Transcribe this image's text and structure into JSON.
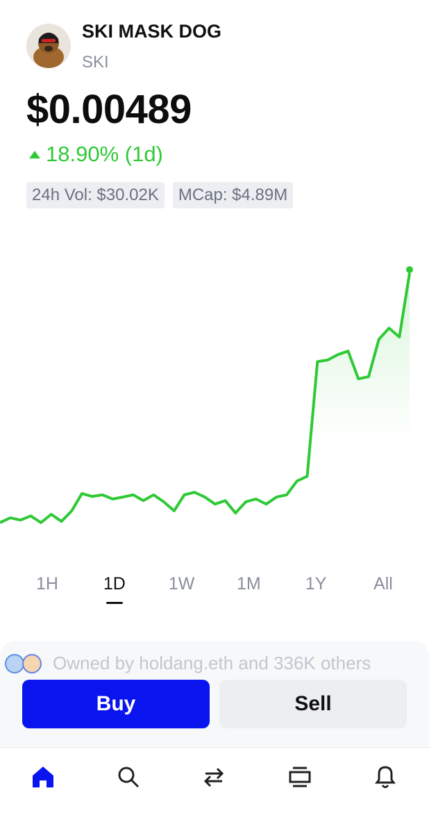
{
  "header": {
    "name": "SKI MASK DOG",
    "symbol": "SKI"
  },
  "price": "$0.00489",
  "change": "18.90% (1d)",
  "stats": [
    "24h Vol: $30.02K",
    "MCap: $4.89M"
  ],
  "chart_data": {
    "type": "line",
    "series": [
      {
        "color": "#2fc936",
        "values": [
          0.004109,
          0.004124,
          0.004117,
          0.00413,
          0.004109,
          0.004135,
          0.004113,
          0.004146,
          0.0042,
          0.004191,
          0.004196,
          0.004183,
          0.004189,
          0.004196,
          0.004178,
          0.004196,
          0.004174,
          0.004146,
          0.004196,
          0.004204,
          0.004189,
          0.004167,
          0.004178,
          0.004139,
          0.004174,
          0.004183,
          0.004167,
          0.004189,
          0.004196,
          0.004239,
          0.004254,
          0.004613,
          0.004618,
          0.004635,
          0.004646,
          0.004559,
          0.004566,
          0.004683,
          0.004718,
          0.00469,
          0.00489
        ]
      }
    ]
  },
  "timeframes": {
    "options": [
      "1H",
      "1D",
      "1W",
      "1M",
      "1Y",
      "All"
    ],
    "selected": 1
  },
  "owners": "Owned by holdang.eth and 336K others",
  "actions": {
    "buy": "Buy",
    "sell": "Sell"
  }
}
